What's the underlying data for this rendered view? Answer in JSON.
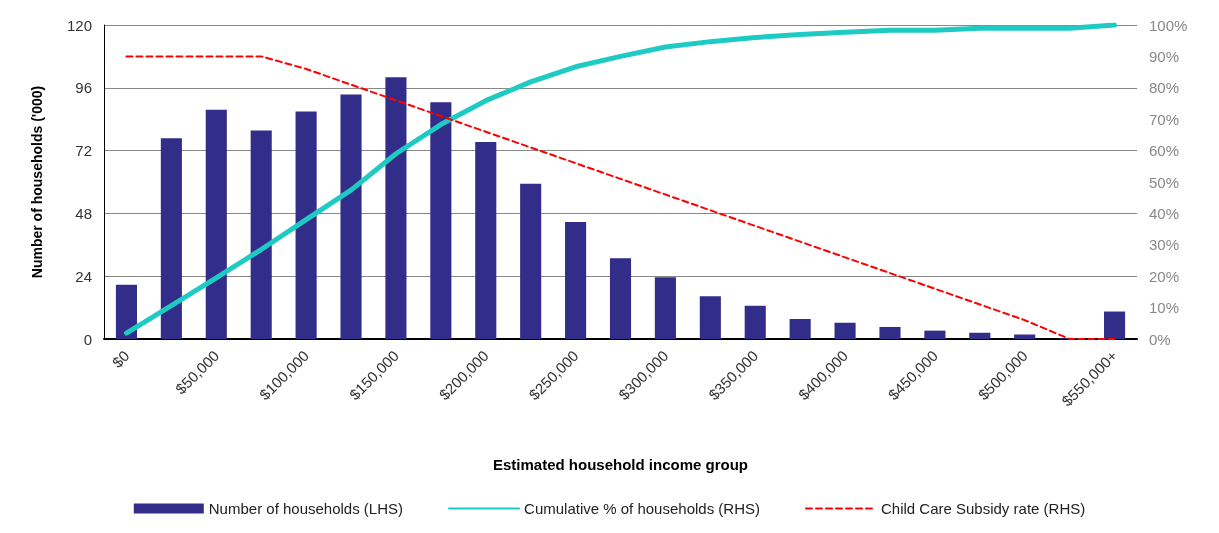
{
  "chart_data": {
    "type": "bar",
    "xlabel": "Estimated household income group",
    "ylabel": "Number of households ('000)",
    "categories": [
      "$0",
      null,
      "$50,000",
      null,
      "$100,000",
      null,
      "$150,000",
      null,
      "$200,000",
      null,
      "$250,000",
      null,
      "$300,000",
      null,
      "$350,000",
      null,
      "$400,000",
      null,
      "$450,000",
      null,
      "$500,000",
      null,
      "$550,000+"
    ],
    "series": [
      {
        "name": "Number of households (LHS)",
        "color": "#332d8a",
        "values": [
          20.7,
          76.7,
          87.6,
          79.7,
          86.9,
          93.4,
          100,
          90.5,
          75.3,
          59.3,
          44.7,
          30.9,
          23.6,
          16.3,
          12.7,
          7.6,
          6.2,
          4.6,
          3.2,
          2.4,
          1.7,
          0.3,
          10.5
        ]
      },
      {
        "name": "Cumulative % of households (RHS)",
        "type": "line",
        "axis": "y2",
        "color": "#1ecbc4",
        "line_style": "solid",
        "values": [
          1.9,
          10.6,
          19.5,
          28.5,
          38,
          47.4,
          59,
          68.3,
          75.9,
          81.9,
          86.7,
          90,
          93,
          94.7,
          96,
          97,
          97.7,
          98.3,
          98.3,
          99,
          99,
          99,
          100
        ]
      },
      {
        "name": "Child Care Subsidy rate (RHS)",
        "type": "line",
        "axis": "y2",
        "color": "#ff0000",
        "line_style": "dashed",
        "values": [
          90,
          90,
          90,
          90,
          86,
          81,
          76,
          71,
          66,
          61,
          56,
          51,
          46,
          41,
          36,
          31,
          26,
          21,
          16,
          11,
          6,
          0,
          0
        ]
      }
    ],
    "ylim": [
      0,
      120
    ],
    "yticks": [
      0,
      24,
      48,
      72,
      96,
      120
    ],
    "y2lim": [
      0,
      100
    ],
    "y2ticks": [
      {
        "value": 0,
        "label": "0%"
      },
      {
        "value": 10,
        "label": "10%"
      },
      {
        "value": 20,
        "label": "20%"
      },
      {
        "value": 30,
        "label": "30%"
      },
      {
        "value": 40,
        "label": "40%"
      },
      {
        "value": 50,
        "label": "50%"
      },
      {
        "value": 60,
        "label": "60%"
      },
      {
        "value": 70,
        "label": "70%"
      },
      {
        "value": 80,
        "label": "80%"
      },
      {
        "value": 90,
        "label": "90%"
      },
      {
        "value": 100,
        "label": "100%"
      }
    ],
    "grid": "y",
    "legend": "bottom",
    "marker": "none"
  }
}
